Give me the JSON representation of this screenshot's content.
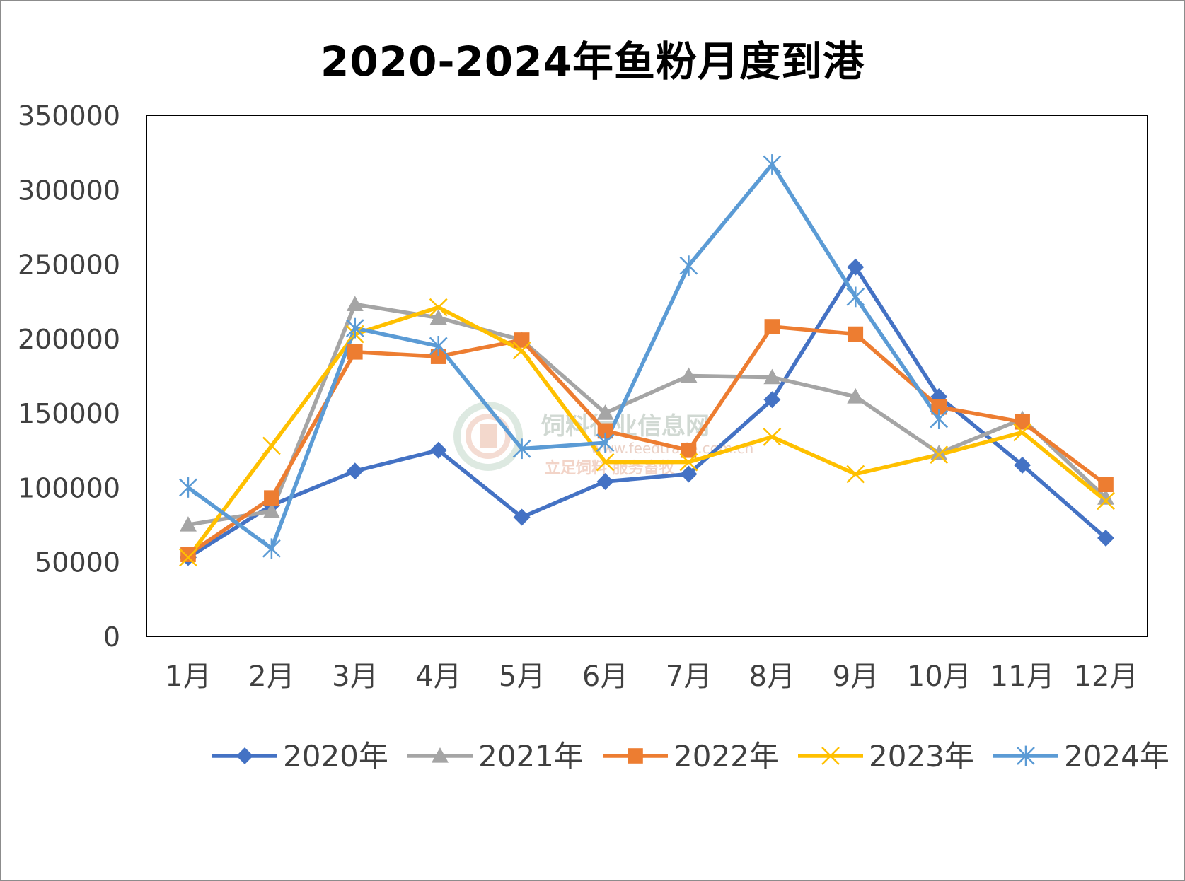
{
  "watermark": {
    "name": "饲料行业信息网",
    "url": "www.feedtrade.com.cn",
    "slogan": "立足饲料  服务畜牧"
  },
  "chart_data": {
    "type": "line",
    "title": "2020-2024年鱼粉月度到港",
    "xlabel": "",
    "ylabel": "",
    "categories": [
      "1月",
      "2月",
      "3月",
      "4月",
      "5月",
      "6月",
      "7月",
      "8月",
      "9月",
      "10月",
      "11月",
      "12月"
    ],
    "ylim": [
      0,
      350000
    ],
    "yticks": [
      0,
      50000,
      100000,
      150000,
      200000,
      250000,
      300000,
      350000
    ],
    "grid": false,
    "legend_position": "bottom",
    "series": [
      {
        "name": "2020年",
        "color": "#4472c4",
        "marker": "diamond",
        "values": [
          53000,
          88000,
          111000,
          125000,
          80000,
          104000,
          109000,
          159000,
          248000,
          161000,
          115000,
          66000
        ]
      },
      {
        "name": "2021年",
        "color": "#a5a5a5",
        "marker": "triangle",
        "values": [
          75000,
          84000,
          223000,
          214000,
          199000,
          150000,
          175000,
          174000,
          161000,
          123000,
          146000,
          93000
        ]
      },
      {
        "name": "2022年",
        "color": "#ed7d31",
        "marker": "square",
        "values": [
          55000,
          93000,
          191000,
          188000,
          199000,
          138000,
          125000,
          208000,
          203000,
          154000,
          144000,
          102000
        ]
      },
      {
        "name": "2023年",
        "color": "#ffc000",
        "marker": "x",
        "values": [
          53000,
          128000,
          203000,
          221000,
          192000,
          117000,
          117000,
          134000,
          109000,
          122000,
          137000,
          91000
        ]
      },
      {
        "name": "2024年",
        "color": "#5b9bd5",
        "marker": "star",
        "values": [
          100000,
          59000,
          207000,
          195000,
          126000,
          130000,
          249000,
          317000,
          228000,
          146000,
          null,
          null
        ]
      }
    ]
  }
}
